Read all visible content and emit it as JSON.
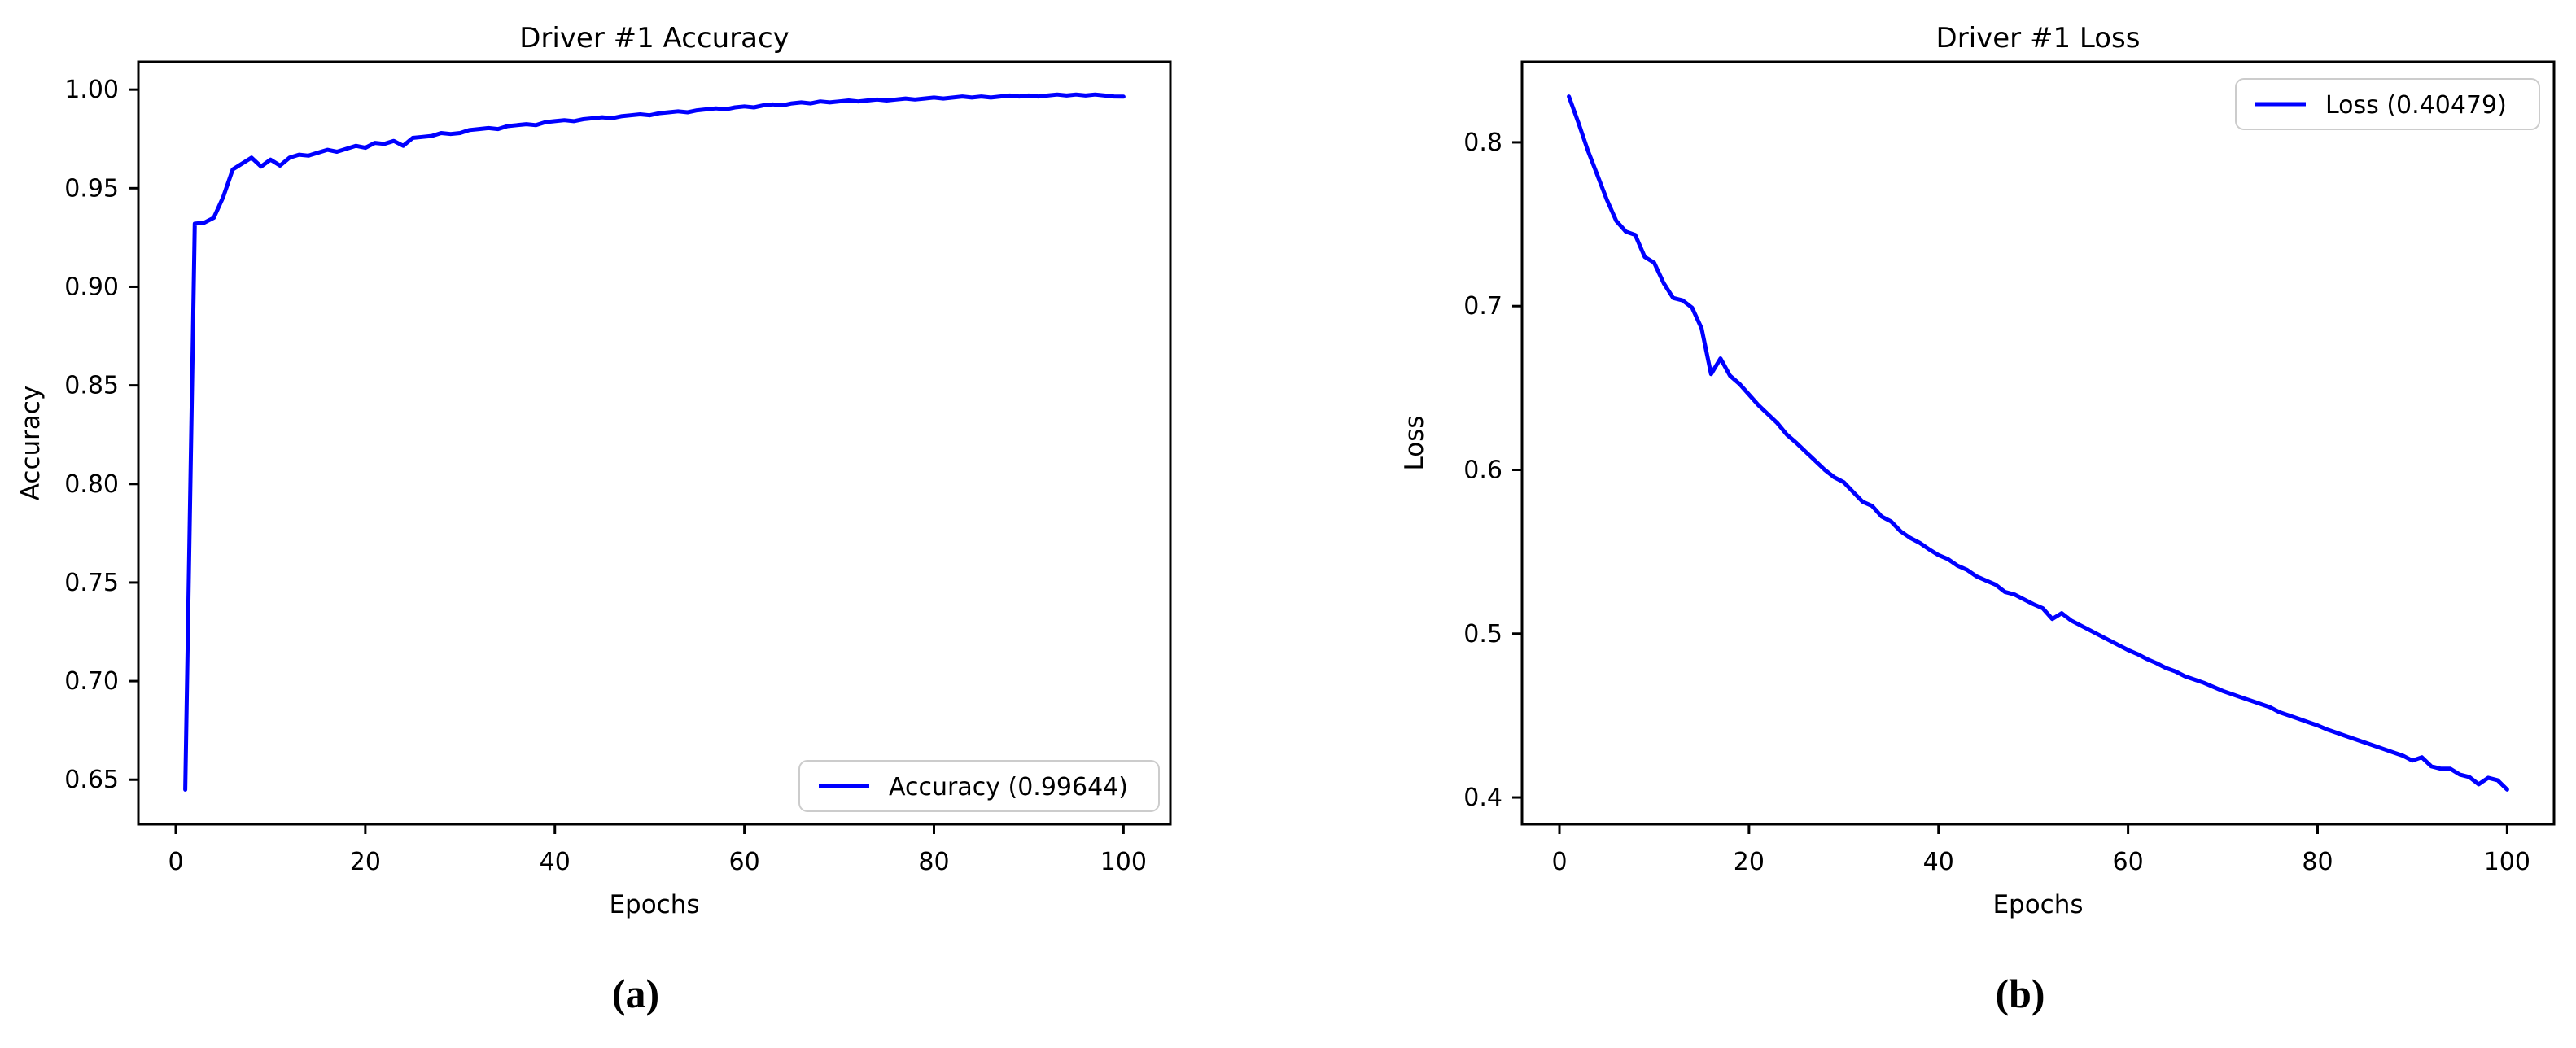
{
  "figure": {
    "background": "#ffffff",
    "text_color": "#000000",
    "captions": {
      "a": "(a)",
      "b": "(b)"
    }
  },
  "chart_data": [
    {
      "type": "line",
      "title": "Driver #1 Accuracy",
      "xlabel": "Epochs",
      "ylabel": "Accuracy",
      "grid": false,
      "xlim": [
        -3.95,
        104.95
      ],
      "ylim": [
        0.6274,
        1.0141
      ],
      "xticks": {
        "values": [
          0,
          20,
          40,
          60,
          80,
          100
        ],
        "labels": [
          "0",
          "20",
          "40",
          "60",
          "80",
          "100"
        ]
      },
      "yticks": {
        "values": [
          0.65,
          0.7,
          0.75,
          0.8,
          0.85,
          0.9,
          0.95,
          1.0
        ],
        "labels": [
          "0.65",
          "0.70",
          "0.75",
          "0.80",
          "0.85",
          "0.90",
          "0.95",
          "1.00"
        ]
      },
      "legend": {
        "position": "lower right",
        "entries": [
          "Accuracy (0.99644)"
        ]
      },
      "series": [
        {
          "name": "Accuracy (0.99644)",
          "color": "#0000ff",
          "final_value": 0.99644,
          "x_start": 1,
          "x_step": 1,
          "values": [
            0.645,
            0.932,
            0.9325,
            0.935,
            0.9455,
            0.9595,
            0.9625,
            0.9655,
            0.961,
            0.9645,
            0.9615,
            0.9655,
            0.967,
            0.9665,
            0.968,
            0.9695,
            0.9685,
            0.97,
            0.9715,
            0.9705,
            0.973,
            0.9725,
            0.974,
            0.9715,
            0.9755,
            0.976,
            0.9765,
            0.978,
            0.9775,
            0.978,
            0.9795,
            0.98,
            0.9805,
            0.98,
            0.9815,
            0.982,
            0.9825,
            0.982,
            0.9835,
            0.984,
            0.9845,
            0.984,
            0.985,
            0.9855,
            0.986,
            0.9855,
            0.9865,
            0.987,
            0.9875,
            0.987,
            0.988,
            0.9885,
            0.989,
            0.9885,
            0.9895,
            0.99,
            0.9905,
            0.99,
            0.991,
            0.9915,
            0.991,
            0.992,
            0.9925,
            0.992,
            0.993,
            0.9935,
            0.993,
            0.994,
            0.9935,
            0.994,
            0.9945,
            0.994,
            0.9945,
            0.995,
            0.9945,
            0.995,
            0.9955,
            0.995,
            0.9955,
            0.996,
            0.9955,
            0.996,
            0.9965,
            0.996,
            0.9965,
            0.996,
            0.9965,
            0.997,
            0.9965,
            0.997,
            0.9965,
            0.997,
            0.9975,
            0.997,
            0.9975,
            0.997,
            0.9975,
            0.997,
            0.9965,
            0.99644
          ]
        }
      ]
    },
    {
      "type": "line",
      "title": "Driver #1 Loss",
      "xlabel": "Epochs",
      "ylabel": "Loss",
      "grid": false,
      "xlim": [
        -3.95,
        104.95
      ],
      "ylim": [
        0.38363,
        0.84916
      ],
      "xticks": {
        "values": [
          0,
          20,
          40,
          60,
          80,
          100
        ],
        "labels": [
          "0",
          "20",
          "40",
          "60",
          "80",
          "100"
        ]
      },
      "yticks": {
        "values": [
          0.4,
          0.5,
          0.6,
          0.7,
          0.8
        ],
        "labels": [
          "0.4",
          "0.5",
          "0.6",
          "0.7",
          "0.8"
        ]
      },
      "legend": {
        "position": "upper right",
        "entries": [
          "Loss (0.40479)"
        ]
      },
      "series": [
        {
          "name": "Loss (0.40479)",
          "color": "#0000ff",
          "final_value": 0.40479,
          "x_start": 1,
          "x_step": 1,
          "values": [
            0.828,
            0.812,
            0.795,
            0.78,
            0.765,
            0.752,
            0.7455,
            0.7435,
            0.73,
            0.7265,
            0.714,
            0.705,
            0.7035,
            0.699,
            0.6865,
            0.6585,
            0.668,
            0.6575,
            0.6525,
            0.646,
            0.6395,
            0.634,
            0.6285,
            0.6215,
            0.6165,
            0.611,
            0.6055,
            0.6,
            0.5955,
            0.5925,
            0.5865,
            0.5805,
            0.578,
            0.5715,
            0.5685,
            0.5625,
            0.5585,
            0.5555,
            0.5515,
            0.548,
            0.5455,
            0.5415,
            0.539,
            0.535,
            0.5325,
            0.53,
            0.5255,
            0.524,
            0.521,
            0.518,
            0.5155,
            0.509,
            0.5125,
            0.508,
            0.505,
            0.502,
            0.499,
            0.496,
            0.493,
            0.49,
            0.4875,
            0.4845,
            0.482,
            0.479,
            0.477,
            0.474,
            0.472,
            0.47,
            0.4675,
            0.465,
            0.463,
            0.461,
            0.459,
            0.457,
            0.455,
            0.452,
            0.45,
            0.448,
            0.446,
            0.444,
            0.4415,
            0.4395,
            0.4375,
            0.4355,
            0.4335,
            0.4315,
            0.4295,
            0.4275,
            0.4255,
            0.4225,
            0.4245,
            0.419,
            0.4175,
            0.4175,
            0.414,
            0.4125,
            0.408,
            0.412,
            0.4105,
            0.40479
          ]
        }
      ]
    }
  ]
}
